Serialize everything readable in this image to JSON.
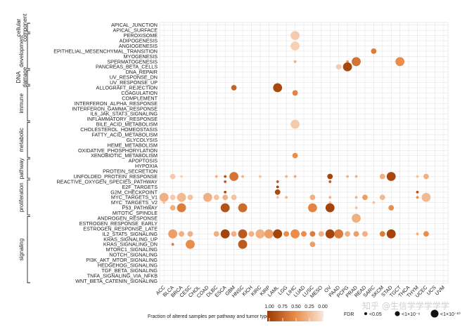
{
  "chart_data": {
    "type": "scatter",
    "subtype": "bubble-matrix",
    "pathways": [
      "APICAL_JUNCTION",
      "APICAL_SURFACE",
      "PEROXISOME",
      "ADIPOGENESIS",
      "ANGIOGENESIS",
      "EPITHELIAL_MESENCHYMAL_TRANSITION",
      "MYOGENESIS",
      "SPERMATOGENESIS",
      "PANCREAS_BETA_CELLS",
      "DNA_REPAIR",
      "UV_RESPONSE_DN",
      "UV_RESPONSE_UP",
      "ALLOGRAFT_REJECTION",
      "COAGULATION",
      "COMPLEMENT",
      "INTERFERON_ALPHA_RESPONSE",
      "INTERFERON_GAMMA_RESPONSE",
      "IL6_JAK_STAT3_SIGNALING",
      "INFLAMMATORY_RESPONSE",
      "BILE_ACID_METABOLISM",
      "CHOLESTEROL_HOMEOSTASIS",
      "FATTY_ACID_METABOLISM",
      "GLYCOLYSIS",
      "HEME_METABOLISM",
      "OXIDATIVE_PHOSPHORYLATION",
      "XENOBIOTIC_METABOLISM",
      "APOPTOSIS",
      "HYPOXIA",
      "PROTEIN_SECRETION",
      "UNFOLDED_PROTEIN_RESPONSE",
      "REACTIVE_OXYGEN_SPECIES_PATHWAY",
      "E2F_TARGETS",
      "G2M_CHECKPOINT",
      "MYC_TARGETS_V1",
      "MYC_TARGETS_V2",
      "P53_PATHWAY",
      "MITOTIC_SPINDLE",
      "ANDROGEN_RESPONSE",
      "ESTROGEN_RESPONSE_EARLY",
      "ESTROGEN_RESPONSE_LATE",
      "IL2_STAT5_SIGNALING",
      "KRAS_SIGNALING_UP",
      "KRAS_SIGNALING_DN",
      "MTORC1_SIGNALING",
      "NOTCH_SIGNALING",
      "PI3K_AKT_MTOR_SIGNALING",
      "HEDGEHOG_SIGNALING",
      "TGF_BETA_SIGNALING",
      "TNFA_SIGNALING_VIA_NFKB",
      "WNT_BETA_CATENIN_SIGNALING"
    ],
    "tumor_types": [
      "ACC",
      "BLCA",
      "BRCA",
      "CESC",
      "CHOL",
      "COAD",
      "DLBC",
      "ESCA",
      "GBM",
      "HNSC",
      "KICH",
      "KIRC",
      "KIRP",
      "LAML",
      "LGG",
      "LIHC",
      "LUAD",
      "LUSC",
      "MESO",
      "OV",
      "PAAD",
      "PCPG",
      "PRAD",
      "READ",
      "SARC",
      "SKCM",
      "STAD",
      "TGCT",
      "THCA",
      "THYM",
      "UCEC",
      "UCS",
      "UVM"
    ],
    "groups": [
      {
        "name": "cellular component",
        "label_lines": [
          "cellular",
          "component"
        ],
        "start": 0,
        "end": 1
      },
      {
        "name": "development",
        "label_lines": [
          "development"
        ],
        "start": 2,
        "end": 8
      },
      {
        "name": "DNA damage",
        "label_lines": [
          "DNA",
          "damage"
        ],
        "start": 9,
        "end": 11
      },
      {
        "name": "immune",
        "label_lines": [
          "immune"
        ],
        "start": 12,
        "end": 18
      },
      {
        "name": "metabolic",
        "label_lines": [
          "metabolic"
        ],
        "start": 19,
        "end": 25
      },
      {
        "name": "pathway",
        "label_lines": [
          "pathway"
        ],
        "start": 26,
        "end": 29
      },
      {
        "name": "proliferation",
        "label_lines": [
          "proliferation"
        ],
        "start": 30,
        "end": 36
      },
      {
        "name": "signaling",
        "label_lines": [
          "signaling"
        ],
        "start": 37,
        "end": 49
      }
    ],
    "points": [
      {
        "pathway": "PEROXISOME",
        "tumor": "LIHC",
        "fraction": 0.15,
        "fdr_class": 2
      },
      {
        "pathway": "ANGIOGENESIS",
        "tumor": "LIHC",
        "fraction": 0.12,
        "fdr_class": 2
      },
      {
        "pathway": "EPITHELIAL_MESENCHYMAL_TRANSITION",
        "tumor": "SARC",
        "fraction": 0.6,
        "fdr_class": 1
      },
      {
        "pathway": "SPERMATOGENESIS",
        "tumor": "PRAD",
        "fraction": 0.65,
        "fdr_class": 2
      },
      {
        "pathway": "SPERMATOGENESIS",
        "tumor": "TGCT",
        "fraction": 0.5,
        "fdr_class": 2
      },
      {
        "pathway": "SPERMATOGENESIS",
        "tumor": "PCPG",
        "fraction": 0.45,
        "fdr_class": 0
      },
      {
        "pathway": "SPERMATOGENESIS",
        "tumor": "LIHC",
        "fraction": 0.3,
        "fdr_class": 0
      },
      {
        "pathway": "PANCREAS_BETA_CELLS",
        "tumor": "PAAD",
        "fraction": 0.15,
        "fdr_class": 1
      },
      {
        "pathway": "PANCREAS_BETA_CELLS",
        "tumor": "PCPG",
        "fraction": 0.92,
        "fdr_class": 2
      },
      {
        "pathway": "ALLOGRAFT_REJECTION",
        "tumor": "GBM",
        "fraction": 0.75,
        "fdr_class": 1
      },
      {
        "pathway": "ALLOGRAFT_REJECTION",
        "tumor": "LAML",
        "fraction": 0.92,
        "fdr_class": 2
      },
      {
        "pathway": "COAGULATION",
        "tumor": "LIHC",
        "fraction": 0.55,
        "fdr_class": 1
      },
      {
        "pathway": "BILE_ACID_METABOLISM",
        "tumor": "LIHC",
        "fraction": 0.15,
        "fdr_class": 2
      },
      {
        "pathway": "XENOBIOTIC_METABOLISM",
        "tumor": "LIHC",
        "fraction": 0.5,
        "fdr_class": 1
      },
      {
        "pathway": "UNFOLDED_PROTEIN_RESPONSE",
        "tumor": "BLCA",
        "fraction": 0.15,
        "fdr_class": 1
      },
      {
        "pathway": "UNFOLDED_PROTEIN_RESPONSE",
        "tumor": "BRCA",
        "fraction": 0.12,
        "fdr_class": 0
      },
      {
        "pathway": "UNFOLDED_PROTEIN_RESPONSE",
        "tumor": "DLBC",
        "fraction": 0.3,
        "fdr_class": 0
      },
      {
        "pathway": "UNFOLDED_PROTEIN_RESPONSE",
        "tumor": "ESCA",
        "fraction": 0.85,
        "fdr_class": 0
      },
      {
        "pathway": "UNFOLDED_PROTEIN_RESPONSE",
        "tumor": "GBM",
        "fraction": 0.65,
        "fdr_class": 2
      },
      {
        "pathway": "UNFOLDED_PROTEIN_RESPONSE",
        "tumor": "HNSC",
        "fraction": 0.3,
        "fdr_class": 0
      },
      {
        "pathway": "UNFOLDED_PROTEIN_RESPONSE",
        "tumor": "KIRC",
        "fraction": 0.2,
        "fdr_class": 0
      },
      {
        "pathway": "UNFOLDED_PROTEIN_RESPONSE",
        "tumor": "LGG",
        "fraction": 0.3,
        "fdr_class": 0
      },
      {
        "pathway": "UNFOLDED_PROTEIN_RESPONSE",
        "tumor": "LIHC",
        "fraction": 0.35,
        "fdr_class": 0
      },
      {
        "pathway": "UNFOLDED_PROTEIN_RESPONSE",
        "tumor": "OV",
        "fraction": 0.95,
        "fdr_class": 1
      },
      {
        "pathway": "UNFOLDED_PROTEIN_RESPONSE",
        "tumor": "PCPG",
        "fraction": 0.3,
        "fdr_class": 0
      },
      {
        "pathway": "UNFOLDED_PROTEIN_RESPONSE",
        "tumor": "PRAD",
        "fraction": 0.3,
        "fdr_class": 0
      },
      {
        "pathway": "UNFOLDED_PROTEIN_RESPONSE",
        "tumor": "SKCM",
        "fraction": 0.3,
        "fdr_class": 1
      },
      {
        "pathway": "UNFOLDED_PROTEIN_RESPONSE",
        "tumor": "STAD",
        "fraction": 0.92,
        "fdr_class": 2
      },
      {
        "pathway": "UNFOLDED_PROTEIN_RESPONSE",
        "tumor": "THYM",
        "fraction": 0.2,
        "fdr_class": 0
      },
      {
        "pathway": "UNFOLDED_PROTEIN_RESPONSE",
        "tumor": "UCEC",
        "fraction": 0.3,
        "fdr_class": 1
      },
      {
        "pathway": "REACTIVE_OXYGEN_SPECIES_PATHWAY",
        "tumor": "ESCA",
        "fraction": 0.8,
        "fdr_class": 0
      },
      {
        "pathway": "REACTIVE_OXYGEN_SPECIES_PATHWAY",
        "tumor": "LAML",
        "fraction": 0.8,
        "fdr_class": 0
      },
      {
        "pathway": "REACTIVE_OXYGEN_SPECIES_PATHWAY",
        "tumor": "OV",
        "fraction": 0.8,
        "fdr_class": 0
      },
      {
        "pathway": "E2F_TARGETS",
        "tumor": "LAML",
        "fraction": 0.95,
        "fdr_class": 0
      },
      {
        "pathway": "G2M_CHECKPOINT",
        "tumor": "ESCA",
        "fraction": 0.9,
        "fdr_class": 0
      },
      {
        "pathway": "G2M_CHECKPOINT",
        "tumor": "LAML",
        "fraction": 0.9,
        "fdr_class": 1
      },
      {
        "pathway": "G2M_CHECKPOINT",
        "tumor": "THYM",
        "fraction": 0.85,
        "fdr_class": 0
      },
      {
        "pathway": "MYC_TARGETS_V1",
        "tumor": "ACC",
        "fraction": 0.3,
        "fdr_class": 2
      },
      {
        "pathway": "MYC_TARGETS_V1",
        "tumor": "BLCA",
        "fraction": 0.15,
        "fdr_class": 1
      },
      {
        "pathway": "MYC_TARGETS_V1",
        "tumor": "BRCA",
        "fraction": 0.25,
        "fdr_class": 2
      },
      {
        "pathway": "MYC_TARGETS_V1",
        "tumor": "CESC",
        "fraction": 0.2,
        "fdr_class": 1
      },
      {
        "pathway": "MYC_TARGETS_V1",
        "tumor": "COAD",
        "fraction": 0.3,
        "fdr_class": 2
      },
      {
        "pathway": "MYC_TARGETS_V1",
        "tumor": "DLBC",
        "fraction": 0.2,
        "fdr_class": 1
      },
      {
        "pathway": "MYC_TARGETS_V1",
        "tumor": "ESCA",
        "fraction": 0.3,
        "fdr_class": 1
      },
      {
        "pathway": "MYC_TARGETS_V1",
        "tumor": "GBM",
        "fraction": 0.2,
        "fdr_class": 1
      },
      {
        "pathway": "MYC_TARGETS_V1",
        "tumor": "LAML",
        "fraction": 0.2,
        "fdr_class": 0
      },
      {
        "pathway": "MYC_TARGETS_V1",
        "tumor": "LGG",
        "fraction": 0.3,
        "fdr_class": 0
      },
      {
        "pathway": "MYC_TARGETS_V1",
        "tumor": "LUSC",
        "fraction": 0.3,
        "fdr_class": 1
      },
      {
        "pathway": "MYC_TARGETS_V1",
        "tumor": "OV",
        "fraction": 0.3,
        "fdr_class": 0
      },
      {
        "pathway": "MYC_TARGETS_V1",
        "tumor": "PRAD",
        "fraction": 0.3,
        "fdr_class": 0
      },
      {
        "pathway": "MYC_TARGETS_V1",
        "tumor": "READ",
        "fraction": 0.4,
        "fdr_class": 1
      },
      {
        "pathway": "MYC_TARGETS_V1",
        "tumor": "SKCM",
        "fraction": 0.25,
        "fdr_class": 1
      },
      {
        "pathway": "MYC_TARGETS_V1",
        "tumor": "UCEC",
        "fraction": 0.25,
        "fdr_class": 2
      },
      {
        "pathway": "MYC_TARGETS_V1",
        "tumor": "THYM",
        "fraction": 0.5,
        "fdr_class": 0
      },
      {
        "pathway": "MYC_TARGETS_V2",
        "tumor": "ACC",
        "fraction": 0.2,
        "fdr_class": 0
      },
      {
        "pathway": "MYC_TARGETS_V2",
        "tumor": "OV",
        "fraction": 0.2,
        "fdr_class": 0
      },
      {
        "pathway": "MYC_TARGETS_V2",
        "tumor": "SARC",
        "fraction": 0.2,
        "fdr_class": 0
      },
      {
        "pathway": "P53_PATHWAY",
        "tumor": "BLCA",
        "fraction": 0.3,
        "fdr_class": 1
      },
      {
        "pathway": "P53_PATHWAY",
        "tumor": "BRCA",
        "fraction": 0.6,
        "fdr_class": 2
      },
      {
        "pathway": "P53_PATHWAY",
        "tumor": "ESCA",
        "fraction": 0.85,
        "fdr_class": 2
      },
      {
        "pathway": "P53_PATHWAY",
        "tumor": "HNSC",
        "fraction": 0.7,
        "fdr_class": 2
      },
      {
        "pathway": "P53_PATHWAY",
        "tumor": "LUSC",
        "fraction": 0.55,
        "fdr_class": 2
      },
      {
        "pathway": "P53_PATHWAY",
        "tumor": "OV",
        "fraction": 0.95,
        "fdr_class": 2
      },
      {
        "pathway": "P53_PATHWAY",
        "tumor": "PRAD",
        "fraction": 0.2,
        "fdr_class": 0
      },
      {
        "pathway": "P53_PATHWAY",
        "tumor": "STAD",
        "fraction": 0.5,
        "fdr_class": 1
      },
      {
        "pathway": "ANDROGEN_RESPONSE",
        "tumor": "PRAD",
        "fraction": 0.3,
        "fdr_class": 2
      },
      {
        "pathway": "IL2_STAT5_SIGNALING",
        "tumor": "BLCA",
        "fraction": 0.4,
        "fdr_class": 2
      },
      {
        "pathway": "IL2_STAT5_SIGNALING",
        "tumor": "BRCA",
        "fraction": 0.3,
        "fdr_class": 1
      },
      {
        "pathway": "IL2_STAT5_SIGNALING",
        "tumor": "CESC",
        "fraction": 0.3,
        "fdr_class": 1
      },
      {
        "pathway": "IL2_STAT5_SIGNALING",
        "tumor": "DLBC",
        "fraction": 0.3,
        "fdr_class": 1
      },
      {
        "pathway": "IL2_STAT5_SIGNALING",
        "tumor": "ESCA",
        "fraction": 0.95,
        "fdr_class": 2
      },
      {
        "pathway": "IL2_STAT5_SIGNALING",
        "tumor": "GBM",
        "fraction": 0.3,
        "fdr_class": 1
      },
      {
        "pathway": "IL2_STAT5_SIGNALING",
        "tumor": "HNSC",
        "fraction": 0.8,
        "fdr_class": 2
      },
      {
        "pathway": "IL2_STAT5_SIGNALING",
        "tumor": "KICH",
        "fraction": 0.3,
        "fdr_class": 1
      },
      {
        "pathway": "IL2_STAT5_SIGNALING",
        "tumor": "KIRC",
        "fraction": 0.3,
        "fdr_class": 2
      },
      {
        "pathway": "IL2_STAT5_SIGNALING",
        "tumor": "KIRP",
        "fraction": 0.4,
        "fdr_class": 2
      },
      {
        "pathway": "IL2_STAT5_SIGNALING",
        "tumor": "LAML",
        "fraction": 0.95,
        "fdr_class": 2
      },
      {
        "pathway": "IL2_STAT5_SIGNALING",
        "tumor": "LGG",
        "fraction": 0.5,
        "fdr_class": 1
      },
      {
        "pathway": "IL2_STAT5_SIGNALING",
        "tumor": "LIHC",
        "fraction": 0.5,
        "fdr_class": 2
      },
      {
        "pathway": "IL2_STAT5_SIGNALING",
        "tumor": "LUAD",
        "fraction": 0.5,
        "fdr_class": 1
      },
      {
        "pathway": "IL2_STAT5_SIGNALING",
        "tumor": "LUSC",
        "fraction": 0.6,
        "fdr_class": 1
      },
      {
        "pathway": "IL2_STAT5_SIGNALING",
        "tumor": "MESO",
        "fraction": 0.3,
        "fdr_class": 1
      },
      {
        "pathway": "IL2_STAT5_SIGNALING",
        "tumor": "OV",
        "fraction": 0.95,
        "fdr_class": 2
      },
      {
        "pathway": "IL2_STAT5_SIGNALING",
        "tumor": "PAAD",
        "fraction": 0.6,
        "fdr_class": 2
      },
      {
        "pathway": "IL2_STAT5_SIGNALING",
        "tumor": "PCPG",
        "fraction": 0.3,
        "fdr_class": 1
      },
      {
        "pathway": "IL2_STAT5_SIGNALING",
        "tumor": "PRAD",
        "fraction": 0.4,
        "fdr_class": 1
      },
      {
        "pathway": "IL2_STAT5_SIGNALING",
        "tumor": "READ",
        "fraction": 0.3,
        "fdr_class": 1
      },
      {
        "pathway": "IL2_STAT5_SIGNALING",
        "tumor": "SKCM",
        "fraction": 0.6,
        "fdr_class": 1
      },
      {
        "pathway": "IL2_STAT5_SIGNALING",
        "tumor": "STAD",
        "fraction": 0.95,
        "fdr_class": 2
      },
      {
        "pathway": "IL2_STAT5_SIGNALING",
        "tumor": "UCEC",
        "fraction": 0.5,
        "fdr_class": 1
      },
      {
        "pathway": "IL2_STAT5_SIGNALING",
        "tumor": "THYM",
        "fraction": 0.3,
        "fdr_class": 0
      },
      {
        "pathway": "KRAS_SIGNALING_DN",
        "tumor": "BLCA",
        "fraction": 0.6,
        "fdr_class": 0
      },
      {
        "pathway": "KRAS_SIGNALING_DN",
        "tumor": "CESC",
        "fraction": 0.5,
        "fdr_class": 2
      },
      {
        "pathway": "KRAS_SIGNALING_DN",
        "tumor": "HNSC",
        "fraction": 0.8,
        "fdr_class": 2
      },
      {
        "pathway": "KRAS_SIGNALING_DN",
        "tumor": "LUSC",
        "fraction": 0.4,
        "fdr_class": 1
      }
    ],
    "legend": {
      "color_title": "Fraction of altered samples per pathway and tumor type",
      "color_ticks": [
        "1.00",
        "0.75",
        "0.50",
        "0.25",
        "0.00"
      ],
      "color_low": "#fbe6d8",
      "color_high": "#9c3b03",
      "size_title": "FDR",
      "size_labels": [
        "<0.05",
        "<1×10⁻⁶",
        "<1×10⁻¹⁰"
      ]
    }
  },
  "watermark": "知乎 @生信学学学学学"
}
